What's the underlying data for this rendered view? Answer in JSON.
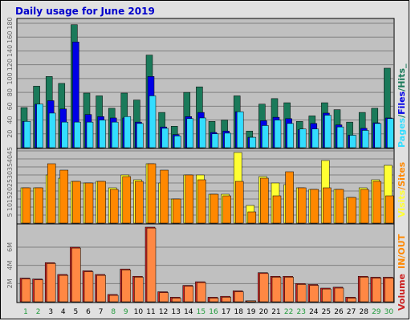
{
  "title": "Daily usage for June 2019",
  "colors": {
    "background": "#e0e0e0",
    "panel": "#c0c0c0",
    "grid": "#808080",
    "hits": "#1a7a5a",
    "files": "#0000e6",
    "pages": "#33ddff",
    "visits": "#ffff33",
    "sites": "#ff8800",
    "kbytes": "#cc2222",
    "kbytes_out": "#ff8844",
    "weekday": "#000000",
    "weekend": "#1f9a3a"
  },
  "legends": {
    "top": [
      "Pages",
      "/",
      "Files",
      "/",
      "Hits",
      "_"
    ],
    "middle": [
      "Visits",
      "/",
      "Sites"
    ],
    "bottom": [
      "Volume",
      "IN",
      "/",
      "OUT"
    ]
  },
  "chart_data": [
    {
      "type": "bar",
      "title": "Daily usage for June 2019",
      "categories": [
        "1",
        "2",
        "3",
        "4",
        "5",
        "6",
        "7",
        "8",
        "9",
        "10",
        "11",
        "12",
        "13",
        "14",
        "15",
        "16",
        "17",
        "18",
        "19",
        "20",
        "21",
        "22",
        "23",
        "24",
        "25",
        "26",
        "27",
        "28",
        "29",
        "30"
      ],
      "weekend_days": [
        "1",
        "2",
        "8",
        "9",
        "15",
        "16",
        "22",
        "23",
        "29",
        "30"
      ],
      "ylim": [
        0,
        180
      ],
      "yticks": [
        "20",
        "40",
        "60",
        "80",
        "100",
        "120",
        "140",
        "160",
        "180"
      ],
      "series": [
        {
          "name": "Hits",
          "values": [
            58,
            89,
            103,
            93,
            178,
            79,
            75,
            57,
            79,
            69,
            134,
            51,
            31,
            80,
            88,
            38,
            40,
            75,
            24,
            63,
            71,
            65,
            38,
            46,
            65,
            55,
            37,
            51,
            57,
            115
          ]
        },
        {
          "name": "Files",
          "values": [
            38,
            63,
            68,
            56,
            153,
            48,
            45,
            43,
            43,
            37,
            103,
            30,
            19,
            45,
            51,
            22,
            24,
            52,
            15,
            39,
            44,
            42,
            26,
            35,
            50,
            33,
            18,
            28,
            36,
            43
          ]
        },
        {
          "name": "Pages",
          "values": [
            38,
            63,
            50,
            37,
            37,
            37,
            40,
            37,
            45,
            35,
            75,
            28,
            17,
            42,
            43,
            20,
            21,
            52,
            15,
            32,
            40,
            35,
            27,
            27,
            47,
            30,
            18,
            25,
            35,
            42
          ]
        }
      ]
    },
    {
      "type": "bar",
      "ylim": [
        0,
        45
      ],
      "yticks": [
        "5",
        "10",
        "15",
        "20",
        "25",
        "30",
        "35",
        "40",
        "45"
      ],
      "series": [
        {
          "name": "Visits",
          "values": [
            22,
            22,
            30,
            28,
            26,
            25,
            26,
            22,
            30,
            27,
            37,
            25,
            15,
            30,
            30,
            18,
            18,
            44,
            11,
            29,
            25,
            24,
            22,
            21,
            39,
            21,
            16,
            22,
            27,
            36
          ]
        },
        {
          "name": "Sites",
          "values": [
            22,
            22,
            37,
            33,
            26,
            25,
            26,
            21,
            29,
            26,
            37,
            33,
            15,
            30,
            27,
            18,
            17,
            26,
            7,
            28,
            17,
            32,
            22,
            21,
            22,
            21,
            16,
            21,
            26,
            17
          ]
        }
      ]
    },
    {
      "type": "bar",
      "ylim": [
        0,
        8.2
      ],
      "yticks": [
        "2M",
        "4M",
        "6M"
      ],
      "series": [
        {
          "name": "IN",
          "values": [
            2.6,
            2.5,
            4.3,
            3.0,
            6.0,
            3.4,
            3.0,
            0.8,
            3.6,
            2.8,
            8.2,
            1.1,
            0.5,
            1.8,
            2.2,
            0.5,
            0.6,
            1.2,
            0.1,
            3.2,
            2.8,
            2.8,
            2.0,
            1.9,
            1.5,
            1.6,
            0.5,
            2.8,
            2.7,
            2.7
          ]
        },
        {
          "name": "OUT",
          "values": [
            2.5,
            2.4,
            4.2,
            2.9,
            5.9,
            3.3,
            2.9,
            0.7,
            3.5,
            2.7,
            8.1,
            1.0,
            0.4,
            1.7,
            2.1,
            0.4,
            0.5,
            1.1,
            0.1,
            3.1,
            2.7,
            2.7,
            1.9,
            1.8,
            1.4,
            1.5,
            0.4,
            2.7,
            2.6,
            2.6
          ]
        }
      ]
    }
  ]
}
